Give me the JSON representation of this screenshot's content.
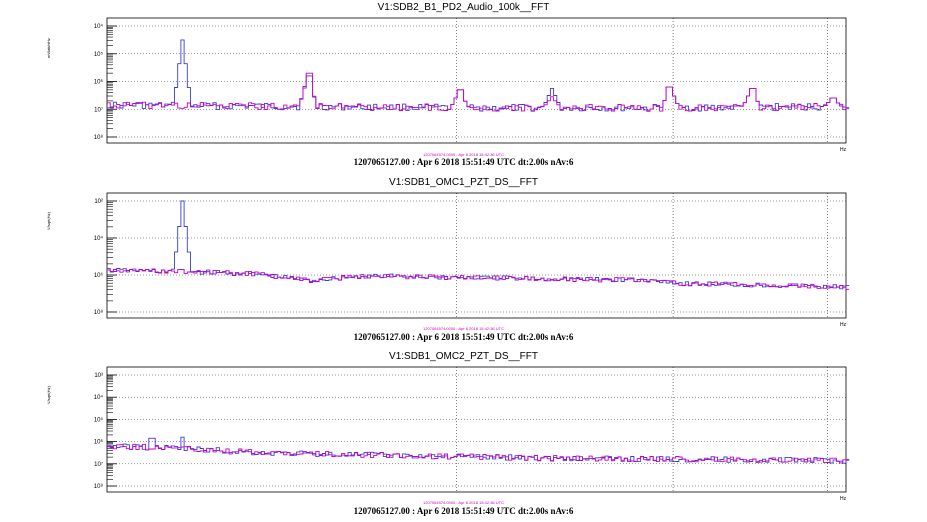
{
  "colors": {
    "trace_blue": "#3c3cdc",
    "trace_magenta": "#c800c8",
    "grid": "#000000"
  },
  "chart_data": [
    {
      "type": "line",
      "title": "V1:SDB2_B1_PD2_Audio_100k__FFT",
      "ylabel": "mWatt/rtHz",
      "xaxis_end_label": "Hz",
      "scale": "log-log",
      "grid": true,
      "y_ticks": [
        "10⁴",
        "10⁵",
        "10⁶",
        "10⁷",
        "10⁸"
      ],
      "reference_text": "1207064574.0000 : Apr  6 2018 15:42:36 UTC",
      "footer": "1207065127.00 : Apr  6 2018 15:51:49 UTC dt:2.00s nAv:6",
      "series": [
        {
          "color": "trace_blue",
          "baseline": [
            [
              0,
              6.85
            ],
            [
              0.25,
              6.9
            ],
            [
              0.5,
              6.95
            ],
            [
              0.75,
              6.95
            ],
            [
              1.0,
              6.9
            ]
          ],
          "peaks": [
            [
              0.1,
              4.5
            ],
            [
              0.27,
              5.8
            ],
            [
              0.475,
              6.3
            ],
            [
              0.6,
              6.25
            ],
            [
              0.76,
              6.2
            ],
            [
              0.87,
              6.25
            ],
            [
              0.98,
              6.6
            ]
          ]
        },
        {
          "color": "trace_magenta",
          "baseline": [
            [
              0,
              6.85
            ],
            [
              0.25,
              6.9
            ],
            [
              0.5,
              6.95
            ],
            [
              0.75,
              6.95
            ],
            [
              1.0,
              6.9
            ]
          ],
          "peaks": [
            [
              0.27,
              5.7
            ],
            [
              0.475,
              6.3
            ],
            [
              0.6,
              6.55
            ],
            [
              0.76,
              6.2
            ],
            [
              0.87,
              6.25
            ],
            [
              0.98,
              6.6
            ]
          ]
        }
      ]
    },
    {
      "type": "line",
      "title": "V1:SDB1_OMC1_PZT_DS__FFT",
      "ylabel": "V/sqrt(Hz)",
      "xaxis_end_label": "Hz",
      "scale": "log-log",
      "grid": true,
      "y_ticks": [
        "10²",
        "10⁴",
        "10⁶",
        "10⁸"
      ],
      "reference_text": "1207064574.0000 : Apr  6 2018 15:42:36 UTC",
      "footer": "1207065127.00 : Apr  6 2018 15:51:49 UTC dt:2.00s nAv:6",
      "series": [
        {
          "color": "trace_blue",
          "baseline": [
            [
              0,
              5.75
            ],
            [
              0.1,
              5.8
            ],
            [
              0.2,
              5.95
            ],
            [
              0.27,
              6.3
            ],
            [
              0.35,
              6.05
            ],
            [
              0.5,
              6.15
            ],
            [
              0.75,
              6.3
            ],
            [
              0.77,
              6.45
            ],
            [
              1.0,
              6.65
            ]
          ],
          "peaks": [
            [
              0.1,
              2.0
            ]
          ]
        },
        {
          "color": "trace_magenta",
          "baseline": [
            [
              0,
              5.75
            ],
            [
              0.1,
              5.8
            ],
            [
              0.2,
              5.95
            ],
            [
              0.27,
              6.3
            ],
            [
              0.35,
              6.05
            ],
            [
              0.5,
              6.15
            ],
            [
              0.75,
              6.3
            ],
            [
              0.77,
              6.45
            ],
            [
              1.0,
              6.65
            ]
          ],
          "peaks": []
        }
      ]
    },
    {
      "type": "line",
      "title": "V1:SDB1_OMC2_PZT_DS__FFT",
      "ylabel": "V/sqrt(Hz)",
      "xaxis_end_label": "Hz",
      "scale": "log-log",
      "grid": true,
      "y_ticks": [
        "10³",
        "10⁴",
        "10⁵",
        "10⁶",
        "10⁷",
        "10⁸"
      ],
      "reference_text": "1207064574.0000 : Apr  6 2018 15:42:36 UTC",
      "footer": "1207065127.00 : Apr  6 2018 15:51:49 UTC dt:2.00s nAv:6",
      "series": [
        {
          "color": "trace_blue",
          "baseline": [
            [
              0,
              6.2
            ],
            [
              0.1,
              6.3
            ],
            [
              0.2,
              6.5
            ],
            [
              0.35,
              6.6
            ],
            [
              0.6,
              6.75
            ],
            [
              1.0,
              6.85
            ]
          ],
          "peaks": [
            [
              0.06,
              5.85
            ],
            [
              0.1,
              5.8
            ]
          ]
        },
        {
          "color": "trace_magenta",
          "baseline": [
            [
              0,
              6.2
            ],
            [
              0.1,
              6.3
            ],
            [
              0.2,
              6.5
            ],
            [
              0.35,
              6.6
            ],
            [
              0.6,
              6.75
            ],
            [
              1.0,
              6.85
            ]
          ],
          "peaks": []
        }
      ]
    }
  ]
}
